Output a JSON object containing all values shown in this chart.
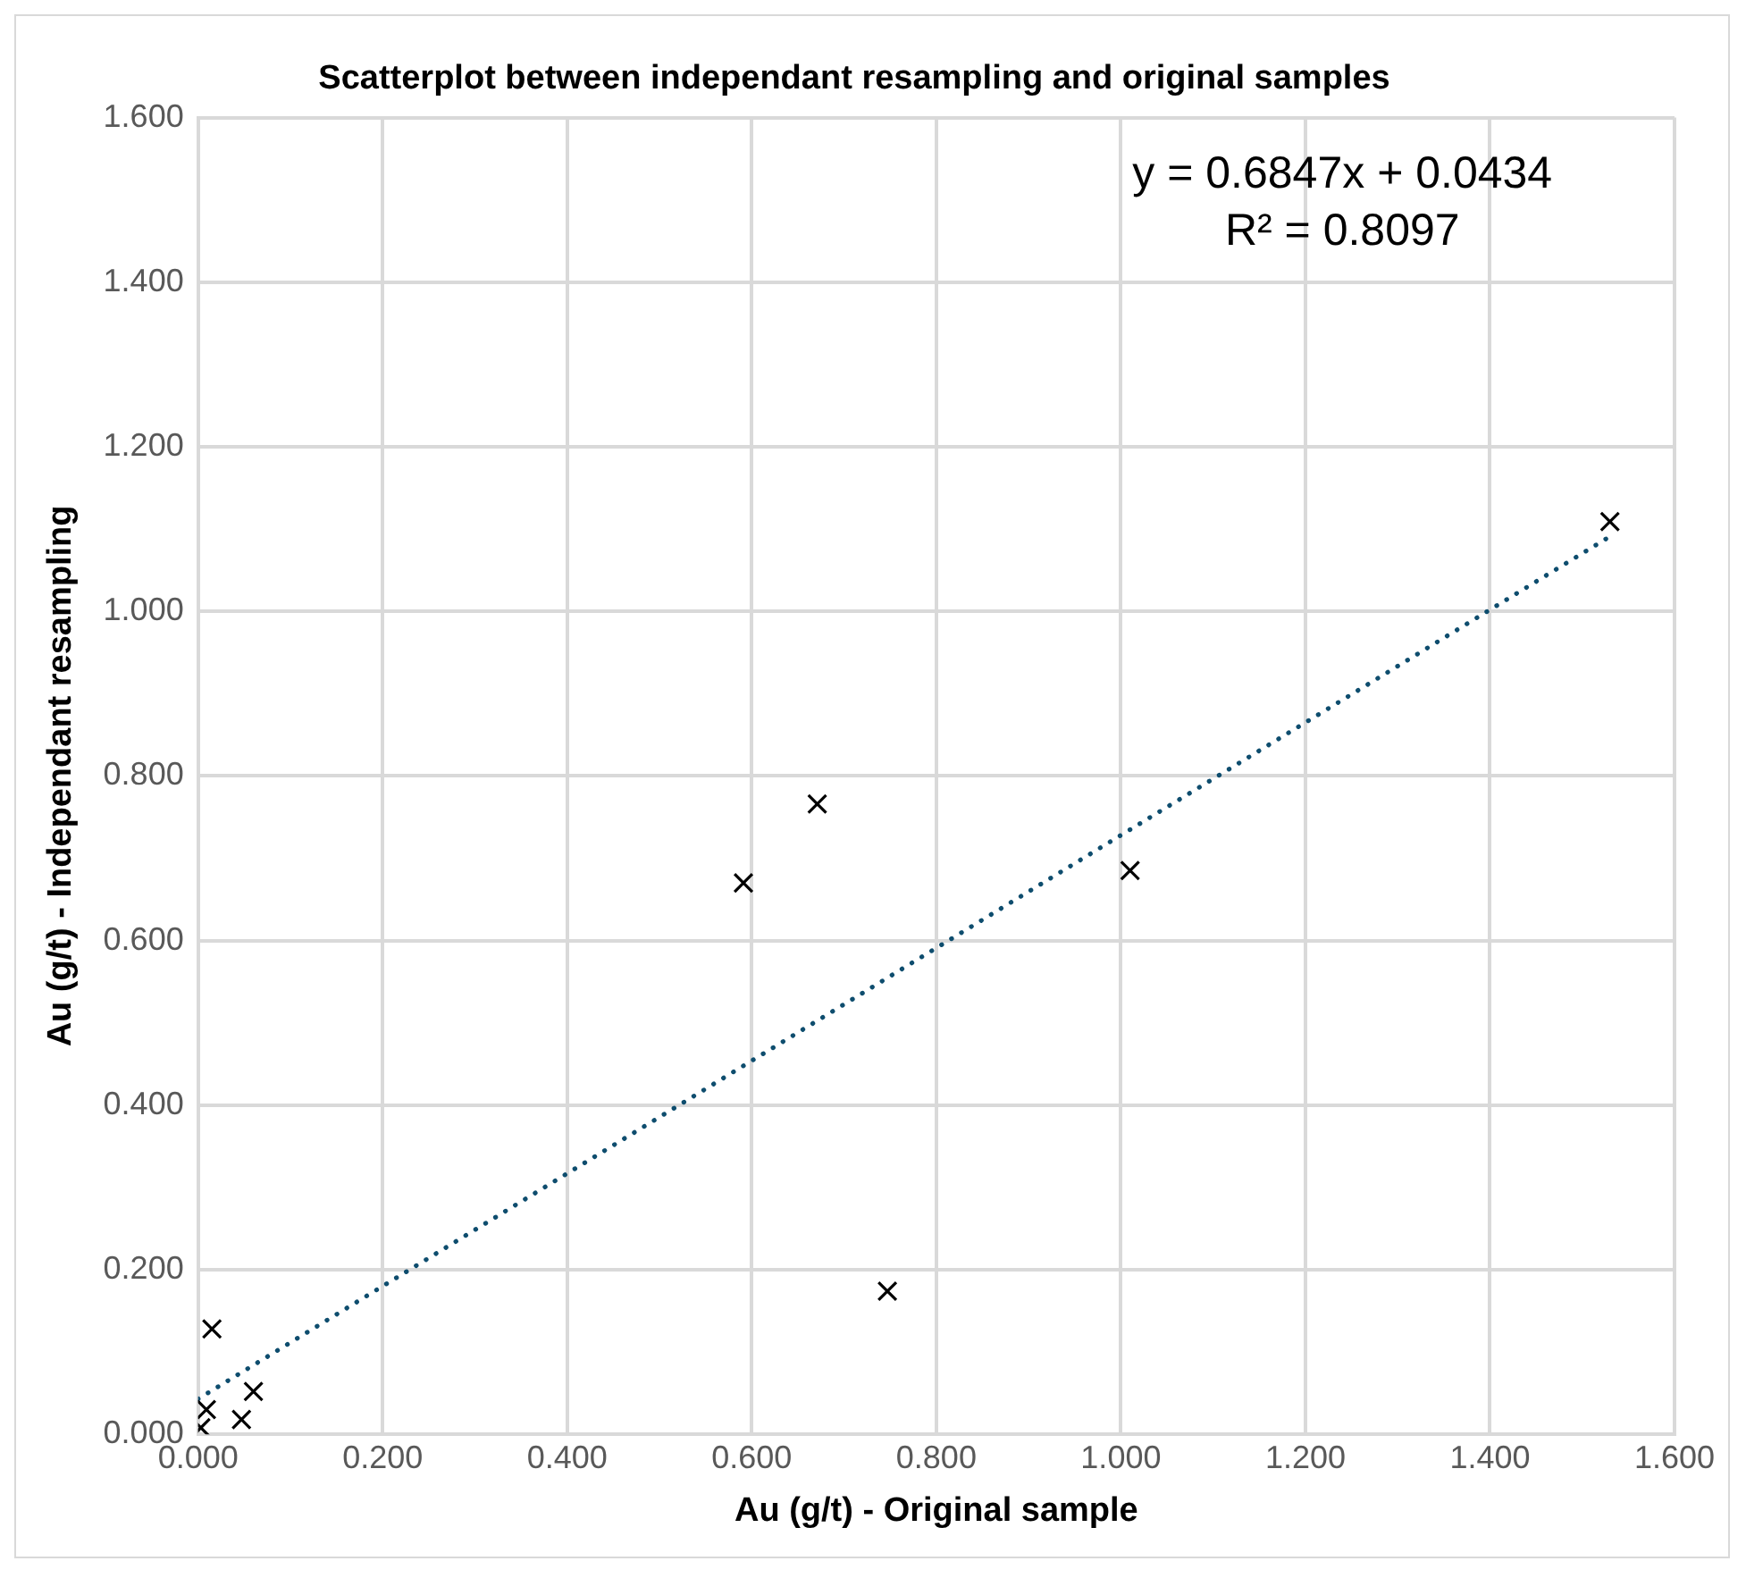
{
  "chart_data": {
    "type": "scatter",
    "title": "Scatterplot between independant resampling and original samples",
    "xlabel": "Au (g/t) - Original sample",
    "ylabel": "Au (g/t) - Independant resampling",
    "series": [
      {
        "color": "#000000",
        "marker": "cross",
        "x": [
          1.53,
          1.01,
          0.671,
          0.591,
          0.747,
          0.015,
          0.06,
          0.047,
          0.009,
          0.003
        ],
        "values": [
          1.109,
          0.685,
          0.766,
          0.67,
          0.174,
          0.128,
          0.052,
          0.018,
          0.03,
          0.008
        ]
      },
      {
        "type": "line",
        "color": "#0e4d6e",
        "marker": "none",
        "line_style": "dotted",
        "x": [
          0,
          1.53
        ],
        "values": [
          0.043,
          1.091
        ]
      }
    ],
    "xlim": [
      0,
      1.6
    ],
    "ylim": [
      0,
      1.6
    ],
    "xticks": [
      {
        "value": 0,
        "label": "0.000"
      },
      {
        "value": 0.2,
        "label": "0.200"
      },
      {
        "value": 0.4,
        "label": "0.400"
      },
      {
        "value": 0.6,
        "label": "0.600"
      },
      {
        "value": 0.8,
        "label": "0.800"
      },
      {
        "value": 1.0,
        "label": "1.000"
      },
      {
        "value": 1.2,
        "label": "1.200"
      },
      {
        "value": 1.4,
        "label": "1.400"
      },
      {
        "value": 1.6,
        "label": "1.600"
      }
    ],
    "yticks": [
      {
        "value": 0,
        "label": "0.000"
      },
      {
        "value": 0.2,
        "label": "0.200"
      },
      {
        "value": 0.4,
        "label": "0.400"
      },
      {
        "value": 0.6,
        "label": "0.600"
      },
      {
        "value": 0.8,
        "label": "0.800"
      },
      {
        "value": 1.0,
        "label": "1.000"
      },
      {
        "value": 1.2,
        "label": "1.200"
      },
      {
        "value": 1.4,
        "label": "1.400"
      },
      {
        "value": 1.6,
        "label": "1.600"
      }
    ],
    "grid": true,
    "legend": false,
    "annotations": [
      "y = 0.6847x + 0.0434",
      "R² = 0.8097"
    ]
  }
}
